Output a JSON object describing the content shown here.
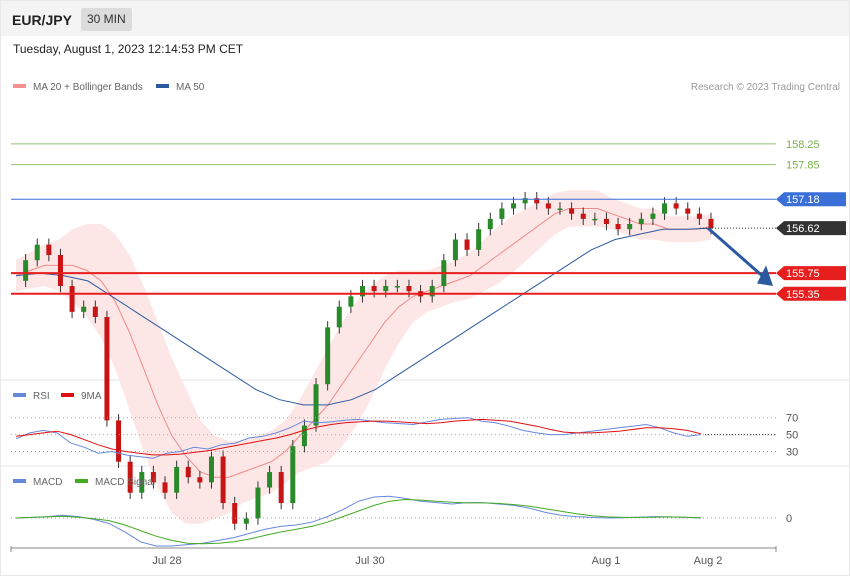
{
  "header": {
    "symbol": "EUR/JPY",
    "timeframe": "30 MIN"
  },
  "date_label": "Tuesday, August 1, 2023 12:14:53 PM CET",
  "legend_main": [
    {
      "label": "MA 20 + Bollinger Bands",
      "color": "#f4908c"
    },
    {
      "label": "MA 50",
      "color": "#2c5aa0"
    }
  ],
  "copyright": "Research © 2023 Trading Central",
  "legend_rsi": [
    {
      "label": "RSI",
      "color": "#6688dd"
    },
    {
      "label": "9MA",
      "color": "#e01010"
    }
  ],
  "legend_macd": [
    {
      "label": "MACD",
      "color": "#6688dd"
    },
    {
      "label": "MACD Signal",
      "color": "#44aa22"
    }
  ],
  "chart_data": [
    {
      "type": "candlestick",
      "name": "price",
      "ylim": [
        153.72,
        159.1
      ],
      "x_labels": [
        "Jul 28",
        "Jul 30",
        "Aug 1",
        "Aug 2"
      ],
      "levels": [
        {
          "value": 158.25,
          "label": "158.25",
          "color": "#7ab04a",
          "style": "line"
        },
        {
          "value": 157.85,
          "label": "157.85",
          "color": "#7ab04a",
          "style": "line"
        },
        {
          "value": 157.18,
          "label": "157.18",
          "color": "#3a6fd8",
          "style": "line-box"
        },
        {
          "value": 156.62,
          "label": "156.62",
          "color": "#333333",
          "style": "current"
        },
        {
          "value": 155.75,
          "label": "155.75",
          "color": "#e61e1e",
          "style": "thick"
        },
        {
          "value": 155.35,
          "label": "155.35",
          "color": "#e61e1e",
          "style": "thick"
        }
      ],
      "close_path": [
        155.6,
        156.0,
        156.3,
        156.1,
        155.5,
        155.0,
        155.1,
        154.9,
        152.9,
        152.1,
        151.5,
        151.9,
        151.7,
        151.5,
        152.0,
        151.8,
        151.7,
        152.2,
        151.3,
        150.9,
        151.0,
        151.6,
        151.9,
        151.3,
        152.4,
        152.8,
        153.6,
        154.7,
        155.1,
        155.3,
        155.5,
        155.4,
        155.5,
        155.5,
        155.4,
        155.3,
        155.5,
        156.0,
        156.4,
        156.2,
        156.6,
        156.8,
        157.0,
        157.1,
        157.2,
        157.1,
        157.0,
        157.0,
        156.9,
        156.8,
        156.8,
        156.7,
        156.6,
        156.7,
        156.8,
        156.9,
        157.1,
        157.0,
        156.9,
        156.8,
        156.62
      ],
      "ma20": [
        155.7,
        155.8,
        155.9,
        155.9,
        155.9,
        155.8,
        155.6,
        155.2,
        154.6,
        153.9,
        153.2,
        152.6,
        152.2,
        151.9,
        151.8,
        151.8,
        151.9,
        152.0,
        152.1,
        152.3,
        152.6,
        152.9,
        153.2,
        153.6,
        154.0,
        154.4,
        154.8,
        155.1,
        155.3,
        155.4,
        155.5,
        155.6,
        155.7,
        155.9,
        156.1,
        156.3,
        156.5,
        156.7,
        156.9,
        157.0,
        157.0,
        157.0,
        156.9,
        156.8,
        156.7,
        156.7,
        156.6,
        156.6,
        156.6,
        156.65
      ],
      "ma50": [
        155.7,
        155.75,
        155.7,
        155.6,
        155.3,
        155.0,
        154.7,
        154.4,
        154.1,
        153.8,
        153.5,
        153.3,
        153.2,
        153.2,
        153.3,
        153.5,
        153.8,
        154.1,
        154.4,
        154.7,
        155.0,
        155.3,
        155.6,
        155.9,
        156.2,
        156.4,
        156.5,
        156.6,
        156.6,
        156.62
      ],
      "ma_x": [
        0.0
      ],
      "rsi_levels": [
        70,
        50,
        30
      ],
      "macd_levels": [
        0
      ]
    }
  ]
}
